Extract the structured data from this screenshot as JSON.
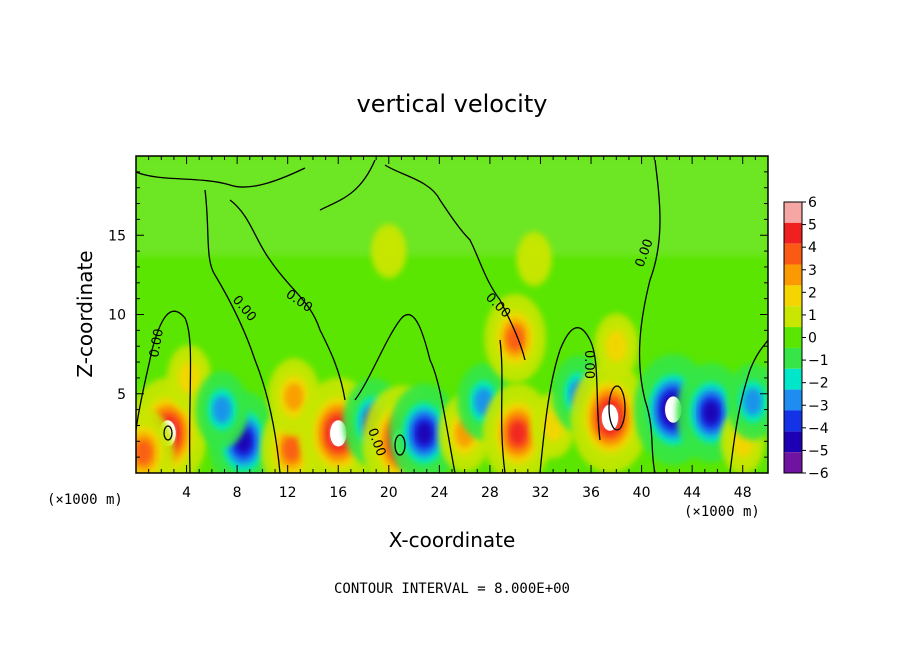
{
  "chart_data": {
    "type": "heatmap",
    "title": "vertical velocity",
    "xlabel": "X-coordinate",
    "ylabel": "Z-coordinate",
    "x_unit": "(×1000 m)",
    "y_unit": "(×1000 m)",
    "xlim": [
      0,
      50
    ],
    "ylim": [
      0,
      20
    ],
    "x_ticks": [
      4,
      8,
      12,
      16,
      20,
      24,
      28,
      32,
      36,
      40,
      44,
      48
    ],
    "y_ticks": [
      5,
      10,
      15
    ],
    "footer": "CONTOUR INTERVAL = 8.000E+00",
    "contour_label": "0.00",
    "colorbar": {
      "levels": [
        "6",
        "5",
        "4",
        "3",
        "2",
        "1",
        "0",
        "−1",
        "−2",
        "−3",
        "−4",
        "−5",
        "−6"
      ],
      "colors": [
        "#f7a6a6",
        "#f02020",
        "#fa5a14",
        "#fa9a00",
        "#f5d500",
        "#c8e600",
        "#5ae600",
        "#36e646",
        "#00e6c8",
        "#1e8cf0",
        "#1432e6",
        "#1e00b4",
        "#6e14a0"
      ]
    },
    "features": [
      {
        "x": 2.5,
        "z": 2.5,
        "value": 6,
        "kind": "updraft"
      },
      {
        "x": 0.6,
        "z": 1.3,
        "value": 4,
        "kind": "updraft"
      },
      {
        "x": 4.2,
        "z": 6.0,
        "value": 2,
        "kind": "updraft"
      },
      {
        "x": 8.5,
        "z": 2.0,
        "value": -5,
        "kind": "downdraft"
      },
      {
        "x": 6.8,
        "z": 4.0,
        "value": -3,
        "kind": "downdraft"
      },
      {
        "x": 12.3,
        "z": 1.5,
        "value": 4,
        "kind": "updraft"
      },
      {
        "x": 12.5,
        "z": 4.8,
        "value": 3,
        "kind": "updraft"
      },
      {
        "x": 16.0,
        "z": 2.5,
        "value": 6,
        "kind": "updraft"
      },
      {
        "x": 18.8,
        "z": 3.2,
        "value": -4,
        "kind": "downdraft"
      },
      {
        "x": 21.0,
        "z": 2.0,
        "value": 6,
        "kind": "updraft"
      },
      {
        "x": 22.8,
        "z": 2.5,
        "value": -5,
        "kind": "downdraft"
      },
      {
        "x": 26.0,
        "z": 2.5,
        "value": 3,
        "kind": "updraft"
      },
      {
        "x": 27.5,
        "z": 4.5,
        "value": -3,
        "kind": "downdraft"
      },
      {
        "x": 30.2,
        "z": 2.5,
        "value": 5,
        "kind": "updraft"
      },
      {
        "x": 30.0,
        "z": 8.5,
        "value": 4,
        "kind": "updraft"
      },
      {
        "x": 33.0,
        "z": 3.0,
        "value": 2,
        "kind": "updraft"
      },
      {
        "x": 35.0,
        "z": 5.0,
        "value": -3,
        "kind": "downdraft"
      },
      {
        "x": 37.5,
        "z": 3.5,
        "value": 6,
        "kind": "updraft"
      },
      {
        "x": 38.0,
        "z": 8.0,
        "value": 2,
        "kind": "updraft"
      },
      {
        "x": 42.5,
        "z": 4.0,
        "value": -6,
        "kind": "downdraft"
      },
      {
        "x": 45.5,
        "z": 3.8,
        "value": -5,
        "kind": "downdraft"
      },
      {
        "x": 48.0,
        "z": 2.0,
        "value": 2,
        "kind": "updraft"
      },
      {
        "x": 48.8,
        "z": 4.5,
        "value": -3,
        "kind": "downdraft"
      },
      {
        "x": 31.5,
        "z": 13.5,
        "value": 1,
        "kind": "updraft"
      },
      {
        "x": 20.0,
        "z": 14.0,
        "value": 1,
        "kind": "updraft"
      }
    ]
  }
}
